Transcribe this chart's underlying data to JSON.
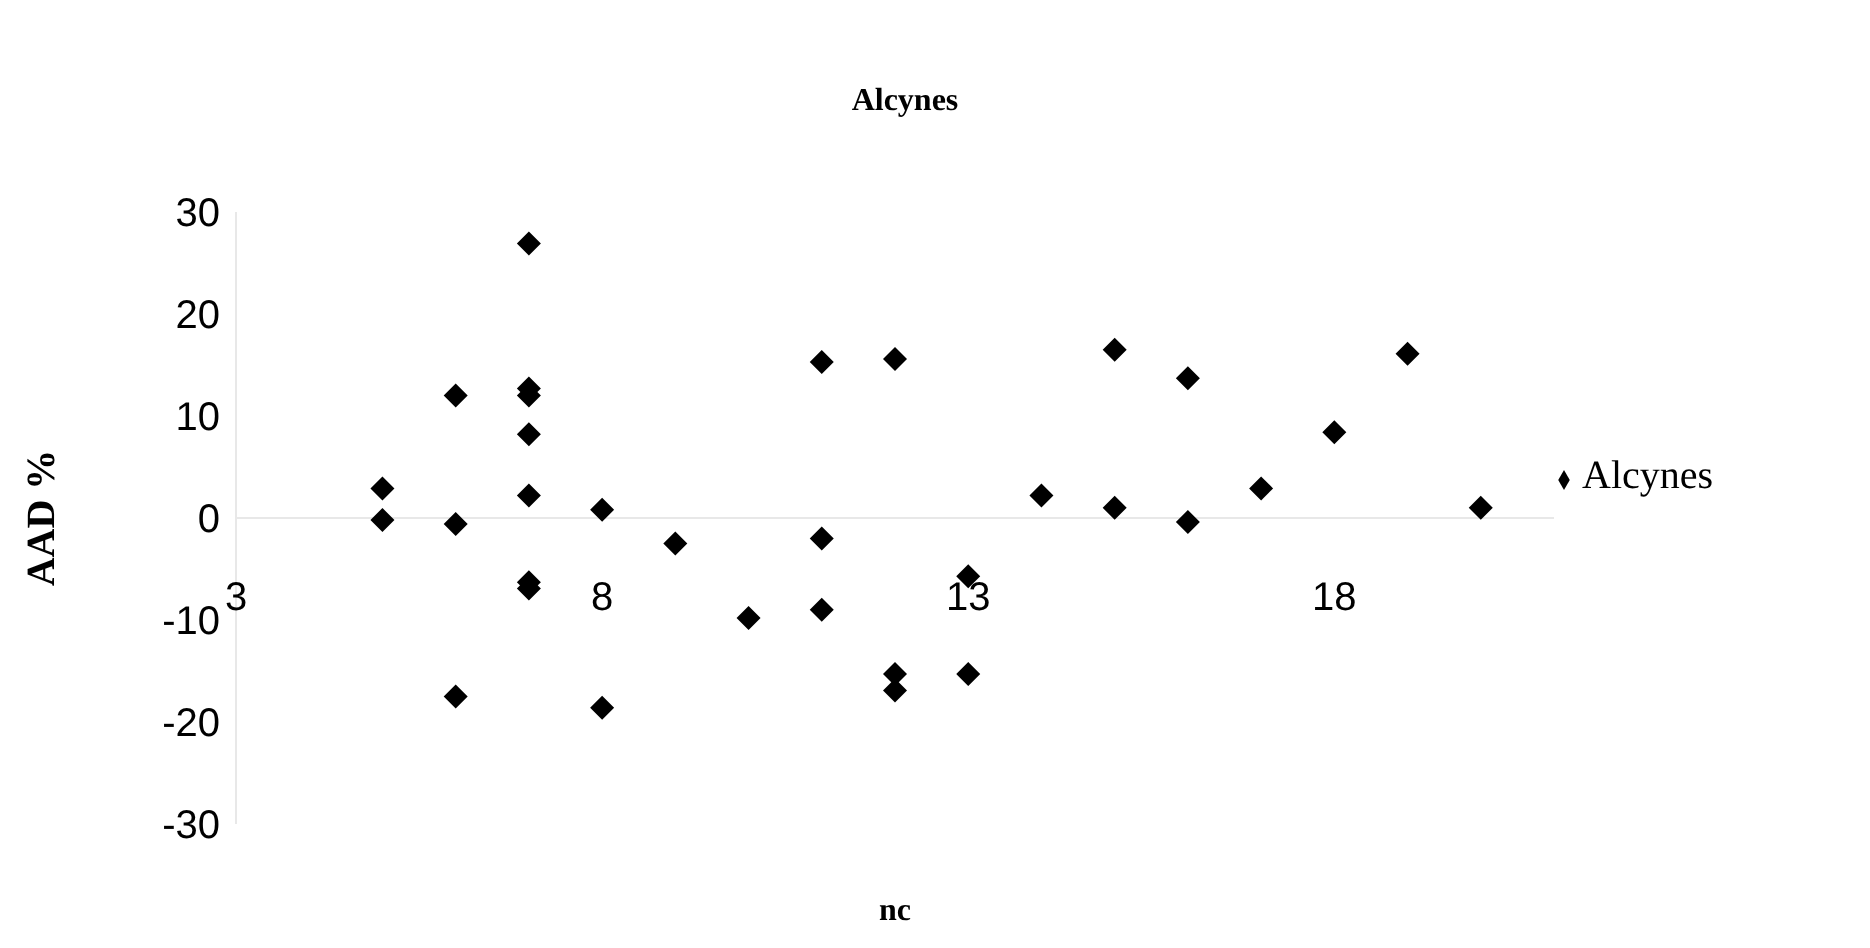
{
  "chart_data": {
    "type": "scatter",
    "title": "Alcynes",
    "xlabel": "nc",
    "ylabel": "AAD %",
    "xlim": [
      3,
      21
    ],
    "xticks": [
      3,
      8,
      13,
      18
    ],
    "ylim": [
      -30,
      30
    ],
    "yticks": [
      -30,
      -20,
      -10,
      0,
      10,
      20,
      30
    ],
    "grid": false,
    "legend": "right",
    "marker": "diamond",
    "series": [
      {
        "name": "Alcynes",
        "color": "#000000",
        "x": [
          5,
          5,
          6,
          6,
          6,
          7,
          7,
          7,
          7,
          7,
          7,
          7,
          8,
          8,
          9,
          10,
          11,
          11,
          11,
          12,
          12,
          12,
          13,
          13,
          14,
          15,
          15,
          16,
          16,
          17,
          18,
          19,
          20
        ],
        "values": [
          2.9,
          -0.2,
          12,
          -0.6,
          -17.5,
          26.9,
          12.7,
          12,
          8.2,
          2.2,
          -6.3,
          -6.9,
          0.8,
          -18.6,
          -2.5,
          -9.8,
          15.3,
          -2,
          -9,
          15.6,
          -15.3,
          -16.9,
          -5.7,
          -15.3,
          2.2,
          16.5,
          1,
          13.7,
          -0.4,
          2.9,
          8.4,
          16.1,
          1
        ]
      }
    ]
  }
}
